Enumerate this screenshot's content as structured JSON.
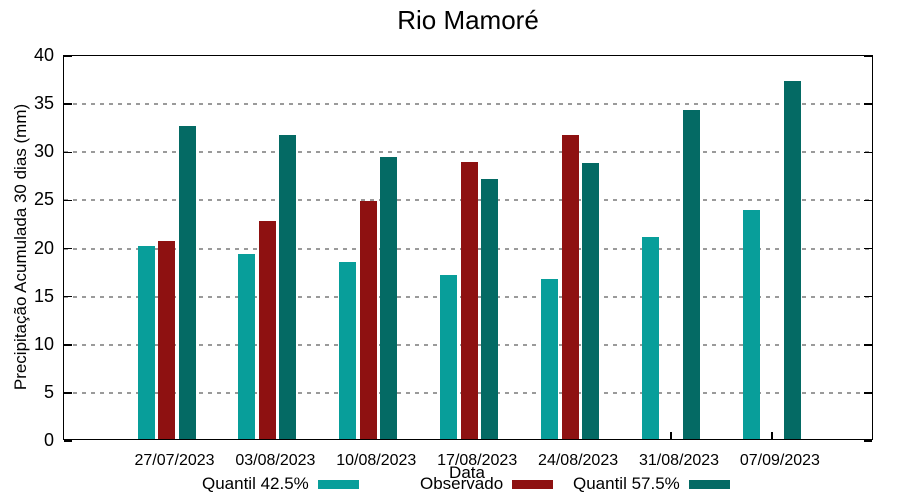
{
  "chart_data": {
    "type": "bar",
    "title": "Rio Mamoré",
    "xlabel": "Data",
    "ylabel": "Precipitação Acumulada 30 dias (mm)",
    "ylim": [
      0,
      40
    ],
    "ytick_step": 5,
    "yticks": [
      0,
      5,
      10,
      15,
      20,
      25,
      30,
      35,
      40
    ],
    "grid": true,
    "legend_position": "bottom",
    "categories": [
      "27/07/2023",
      "03/08/2023",
      "10/08/2023",
      "17/08/2023",
      "24/08/2023",
      "31/08/2023",
      "07/09/2023"
    ],
    "series": [
      {
        "name": "Quantil 42.5%",
        "color": "#089E9A",
        "values": [
          20.1,
          19.2,
          18.4,
          17.0,
          16.6,
          21.0,
          23.8
        ]
      },
      {
        "name": "Observado",
        "color": "#8E1111",
        "values": [
          20.6,
          22.6,
          24.7,
          28.8,
          31.6,
          null,
          null
        ]
      },
      {
        "name": "Quantil 57.5%",
        "color": "#046A64",
        "values": [
          32.5,
          31.6,
          29.3,
          27.0,
          28.7,
          34.2,
          37.2
        ]
      }
    ]
  },
  "colors": {
    "quantil_425": "#089E9A",
    "observado": "#8E1111",
    "quantil_575": "#046A64",
    "grid": "#9a9a9a",
    "axis": "#000000"
  }
}
